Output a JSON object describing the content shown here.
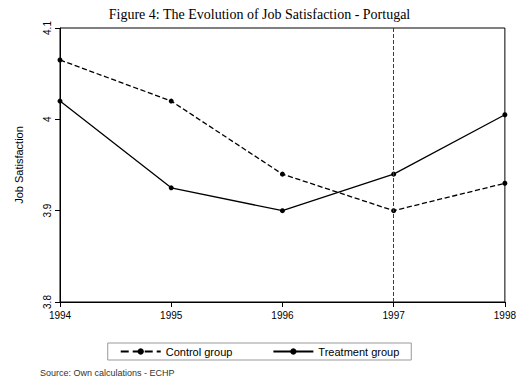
{
  "chart_data": {
    "type": "line",
    "title": "Figure 4: The Evolution of Job Satisfaction - Portugal",
    "y_label": "Job Satisfaction",
    "note": "Source: Own calculations - ECHP",
    "categories": [
      "1994",
      "1995",
      "1996",
      "1997",
      "1998"
    ],
    "series": [
      {
        "name": "Control group",
        "color": "#000000",
        "line_style": "dashed",
        "marker": "circle",
        "values": [
          4.065,
          4.02,
          3.94,
          3.9,
          3.93
        ]
      },
      {
        "name": "Treatment group",
        "color": "#000000",
        "line_style": "solid",
        "marker": "circle",
        "values": [
          4.02,
          3.925,
          3.9,
          3.94,
          4.005
        ]
      }
    ],
    "reference_line": {
      "x": "1997",
      "color": "#cc0000",
      "line_style": "dashed"
    },
    "ylim": [
      3.8,
      4.1
    ],
    "yticks": [
      3.8,
      3.9,
      4,
      4.1
    ],
    "grid": false,
    "legend": "bottom"
  }
}
